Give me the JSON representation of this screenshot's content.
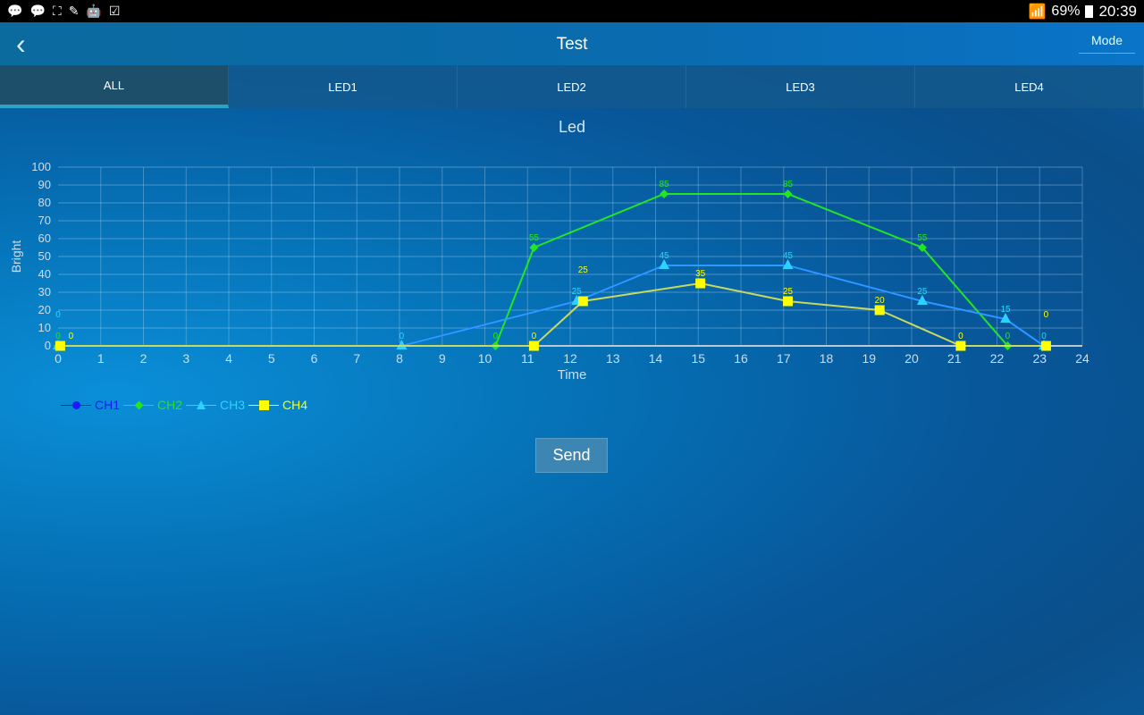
{
  "status_bar": {
    "battery": "69%",
    "time": "20:39",
    "icons": [
      "messenger-icon",
      "messenger-icon",
      "app-icon",
      "leaf-icon",
      "android-icon",
      "clipboard-check-icon"
    ]
  },
  "app_bar": {
    "title": "Test",
    "mode_label": "Mode"
  },
  "tabs": [
    {
      "label": "ALL",
      "active": true
    },
    {
      "label": "LED1"
    },
    {
      "label": "LED2"
    },
    {
      "label": "LED3"
    },
    {
      "label": "LED4"
    }
  ],
  "chart_title": "Led",
  "send_label": "Send",
  "chart_data": {
    "type": "line",
    "title": "Led",
    "xlabel": "Time",
    "ylabel": "Bright",
    "xlim": [
      0,
      24
    ],
    "ylim": [
      0,
      100
    ],
    "xticks": [
      0,
      1,
      2,
      3,
      4,
      5,
      6,
      7,
      8,
      9,
      10,
      11,
      12,
      13,
      14,
      15,
      16,
      17,
      18,
      19,
      20,
      21,
      22,
      23,
      24
    ],
    "yticks": [
      0,
      10,
      20,
      30,
      40,
      50,
      60,
      70,
      80,
      90,
      100
    ],
    "grid": true,
    "legend": "bottom-left",
    "series": [
      {
        "name": "CH1",
        "color": "#1a1aff",
        "marker": "circle",
        "points": [
          [
            0,
            0
          ],
          [
            8.05,
            0
          ],
          [
            12.15,
            25
          ],
          [
            14.2,
            45
          ],
          [
            17.1,
            45
          ],
          [
            20.25,
            25
          ],
          [
            22.2,
            15
          ],
          [
            23.1,
            0
          ]
        ]
      },
      {
        "name": "CH2",
        "color": "#22e622",
        "marker": "diamond",
        "points": [
          [
            0,
            0
          ],
          [
            10.25,
            0
          ],
          [
            11.15,
            55
          ],
          [
            14.2,
            85
          ],
          [
            17.1,
            85
          ],
          [
            20.25,
            55
          ],
          [
            22.25,
            0
          ]
        ]
      },
      {
        "name": "CH3",
        "color": "#2ad4ff",
        "line_color": "#2a9cff",
        "marker": "triangle",
        "points": [
          [
            0,
            0
          ],
          [
            8.05,
            0
          ],
          [
            12.15,
            25
          ],
          [
            14.2,
            45
          ],
          [
            17.1,
            45
          ],
          [
            20.25,
            25
          ],
          [
            22.2,
            15
          ],
          [
            23.1,
            0
          ]
        ]
      },
      {
        "name": "CH4",
        "color": "#ffff00",
        "line_color": "#c8d860",
        "marker": "square",
        "points": [
          [
            0.05,
            0
          ],
          [
            11.15,
            0
          ],
          [
            12.3,
            25
          ],
          [
            15.05,
            35
          ],
          [
            17.1,
            25
          ],
          [
            19.25,
            20
          ],
          [
            21.15,
            0
          ],
          [
            23.15,
            0
          ]
        ]
      }
    ]
  }
}
